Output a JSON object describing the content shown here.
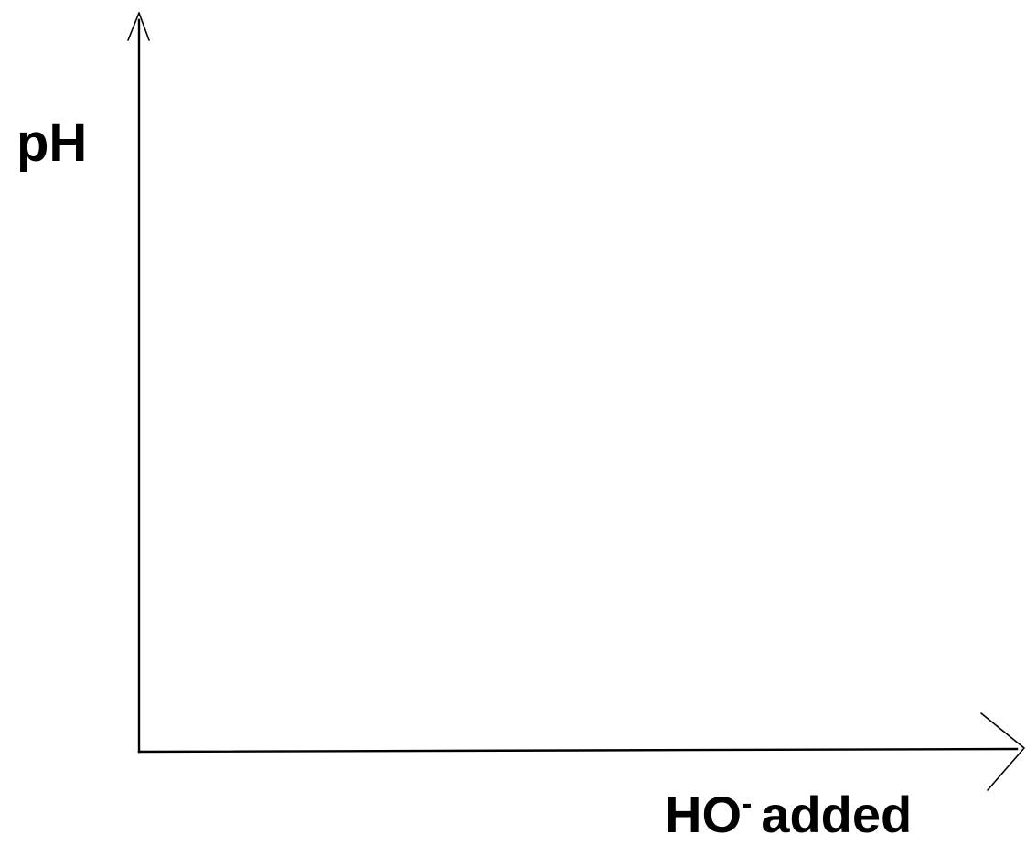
{
  "chart_data": {
    "type": "line",
    "title": "",
    "ylabel": "pH",
    "xlabel": {
      "base": "HO",
      "superscript": "-",
      "suffix": "added"
    },
    "series": [],
    "grid": false,
    "legend": "none"
  }
}
